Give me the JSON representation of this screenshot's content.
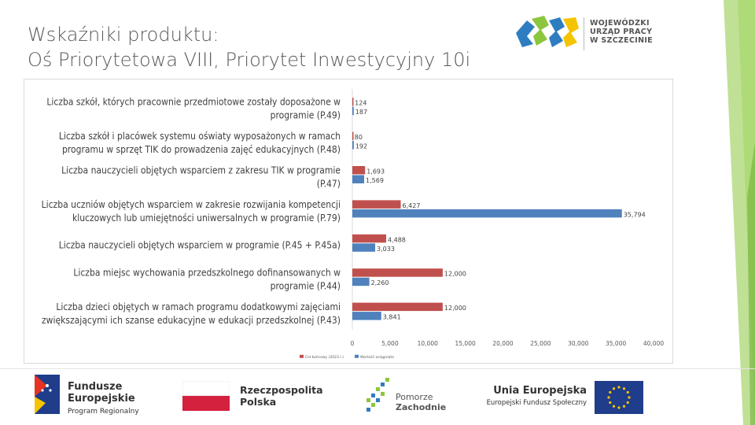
{
  "slide": {
    "title_line1": "Wskaźniki produktu:",
    "title_line2": "Oś Priorytetowa VIII, Priorytet Inwestycyjny 10i"
  },
  "logos": {
    "wup_line1": "WOJEWÓDZKI",
    "wup_line2": "URZĄD PRACY",
    "wup_line3": "W SZCZECINIE",
    "fe_line1": "Fundusze",
    "fe_line2": "Europejskie",
    "fe_line3": "Program Regionalny",
    "rp_line1": "Rzeczpospolita",
    "rp_line2": "Polska",
    "pz_line1": "Pomorze",
    "pz_line2": "Zachodnie",
    "ue_line1": "Unia Europejska",
    "ue_line2": "Europejski Fundusz Społeczny"
  },
  "colors": {
    "series_target": "#c0504d",
    "series_actual": "#4f81bd",
    "accent_green": "#8cc63f",
    "title_gray": "#595959"
  },
  "chart_data": {
    "type": "bar",
    "orientation": "horizontal",
    "categories": [
      [
        "Liczba szkół, których pracownie przedmiotowe zostały doposażone w",
        "programie (P.49)"
      ],
      [
        "Liczba szkół i placówek systemu oświaty wyposażonych w ramach",
        "programu w sprzęt TIK do prowadzenia zajęć edukacyjnych (P.48)"
      ],
      [
        "Liczba nauczycieli objętych wsparciem z zakresu TIK w programie",
        "(P.47)"
      ],
      [
        "Liczba uczniów objętych wsparciem w zakresie rozwijania kompetencji",
        "kluczowych lub umiejętności uniwersalnych w programie (P.79)"
      ],
      [
        "Liczba nauczycieli objętych wsparciem w programie (P.45 + P.45a)"
      ],
      [
        "Liczba miejsc wychowania przedszkolnego dofinansowanych w",
        "programie (P.44)"
      ],
      [
        "Liczba dzieci objętych w ramach programu dodatkowymi zajęciami",
        "zwiększającymi ich szanse edukacyjne w edukacji przedszkolnej (P.43)"
      ]
    ],
    "series": [
      {
        "name": "Cel końcowy (2023 r.)",
        "values": [
          124,
          80,
          1693,
          6427,
          4488,
          12000,
          12000
        ],
        "labels": [
          "124",
          "80",
          "1,693",
          "6,427",
          "4,488",
          "12,000",
          "12,000"
        ]
      },
      {
        "name": "Wartość osiągnięta",
        "values": [
          187,
          192,
          1569,
          35794,
          3033,
          2260,
          3841
        ],
        "labels": [
          "187",
          "192",
          "1,569",
          "35,794",
          "3,033",
          "2,260",
          "3,841"
        ]
      }
    ],
    "xlim": [
      0,
      40000
    ],
    "xticks": [
      "0",
      "5,000",
      "10,000",
      "15,000",
      "20,000",
      "25,000",
      "30,000",
      "35,000",
      "40,000"
    ],
    "legend_position": "bottom",
    "grid": false
  }
}
